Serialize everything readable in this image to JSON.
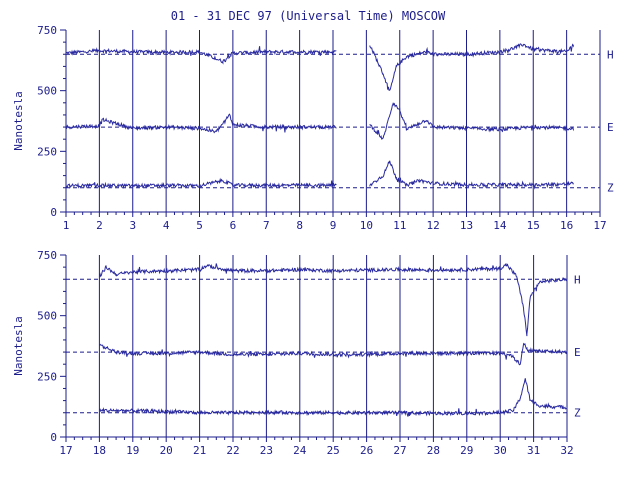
{
  "title": "01 - 31 DEC 97 (Universal Time) MOSCOW",
  "colors": {
    "ink": "#1c1c8c",
    "trace": "#2a2aa0",
    "background": "#ffffff"
  },
  "chart_data": [
    {
      "type": "line",
      "ylabel": "Nanotesla",
      "xlim": [
        1,
        17
      ],
      "ylim": [
        0,
        750
      ],
      "x_ticks": [
        "1",
        "2",
        "3",
        "4",
        "5",
        "6",
        "7",
        "8",
        "9",
        "10",
        "11",
        "12",
        "13",
        "14",
        "15",
        "16",
        "17"
      ],
      "y_ticks": [
        "0",
        "250",
        "500",
        "750"
      ],
      "grid": "vertical lines at each day",
      "data_gap_days": [
        9.1,
        10.1
      ],
      "data_end_day": 16.2,
      "series": [
        {
          "name": "H",
          "baseline": 650,
          "values": [
            [
              1,
              655
            ],
            [
              2,
              665
            ],
            [
              3,
              660
            ],
            [
              4,
              658
            ],
            [
              5,
              660
            ],
            [
              5.7,
              620
            ],
            [
              6,
              655
            ],
            [
              7,
              660
            ],
            [
              8,
              660
            ],
            [
              9,
              660
            ],
            [
              10.1,
              690
            ],
            [
              10.5,
              570
            ],
            [
              10.7,
              495
            ],
            [
              10.9,
              600
            ],
            [
              11.2,
              640
            ],
            [
              11.8,
              660
            ],
            [
              12,
              650
            ],
            [
              13,
              650
            ],
            [
              14,
              660
            ],
            [
              14.3,
              670
            ],
            [
              14.7,
              690
            ],
            [
              15,
              670
            ],
            [
              16,
              660
            ],
            [
              16.2,
              690
            ]
          ]
        },
        {
          "name": "E",
          "baseline": 350,
          "values": [
            [
              1,
              350
            ],
            [
              2,
              355
            ],
            [
              2.1,
              380
            ],
            [
              3,
              345
            ],
            [
              4,
              350
            ],
            [
              5,
              345
            ],
            [
              5.5,
              330
            ],
            [
              5.9,
              400
            ],
            [
              6,
              360
            ],
            [
              7,
              350
            ],
            [
              8,
              350
            ],
            [
              9,
              350
            ],
            [
              10.1,
              360
            ],
            [
              10.5,
              300
            ],
            [
              10.7,
              400
            ],
            [
              10.8,
              450
            ],
            [
              11,
              420
            ],
            [
              11.2,
              340
            ],
            [
              11.8,
              380
            ],
            [
              12,
              350
            ],
            [
              13,
              345
            ],
            [
              14,
              340
            ],
            [
              15,
              350
            ],
            [
              16,
              345
            ],
            [
              16.2,
              345
            ]
          ]
        },
        {
          "name": "Z",
          "baseline": 100,
          "values": [
            [
              1,
              108
            ],
            [
              2,
              110
            ],
            [
              3,
              108
            ],
            [
              4,
              110
            ],
            [
              5,
              108
            ],
            [
              5.7,
              130
            ],
            [
              6,
              110
            ],
            [
              7,
              110
            ],
            [
              8,
              110
            ],
            [
              9,
              110
            ],
            [
              10.1,
              110
            ],
            [
              10.5,
              150
            ],
            [
              10.7,
              210
            ],
            [
              10.9,
              140
            ],
            [
              11.2,
              110
            ],
            [
              11.6,
              130
            ],
            [
              12,
              118
            ],
            [
              13,
              112
            ],
            [
              14,
              112
            ],
            [
              15,
              112
            ],
            [
              16,
              115
            ],
            [
              16.2,
              118
            ]
          ]
        }
      ]
    },
    {
      "type": "line",
      "ylabel": "Nanotesla",
      "xlim": [
        17,
        32
      ],
      "ylim": [
        0,
        750
      ],
      "x_ticks": [
        "17",
        "18",
        "19",
        "20",
        "21",
        "22",
        "23",
        "24",
        "25",
        "26",
        "27",
        "28",
        "29",
        "30",
        "31",
        "32"
      ],
      "y_ticks": [
        "0",
        "250",
        "500",
        "750"
      ],
      "grid": "vertical lines at each day",
      "data_start_day": 18,
      "data_end_day": 32,
      "series": [
        {
          "name": "H",
          "baseline": 650,
          "values": [
            [
              18,
              660
            ],
            [
              18.2,
              700
            ],
            [
              18.5,
              670
            ],
            [
              19,
              680
            ],
            [
              20,
              685
            ],
            [
              21,
              690
            ],
            [
              21.2,
              705
            ],
            [
              22,
              685
            ],
            [
              23,
              685
            ],
            [
              24,
              690
            ],
            [
              25,
              685
            ],
            [
              26,
              688
            ],
            [
              27,
              690
            ],
            [
              28,
              688
            ],
            [
              29,
              690
            ],
            [
              30,
              695
            ],
            [
              30.2,
              710
            ],
            [
              30.5,
              660
            ],
            [
              30.7,
              530
            ],
            [
              30.8,
              420
            ],
            [
              30.9,
              580
            ],
            [
              31.2,
              640
            ],
            [
              32,
              650
            ]
          ]
        },
        {
          "name": "E",
          "baseline": 350,
          "values": [
            [
              18,
              380
            ],
            [
              18.5,
              350
            ],
            [
              19,
              345
            ],
            [
              20,
              345
            ],
            [
              21,
              350
            ],
            [
              22,
              340
            ],
            [
              23,
              340
            ],
            [
              24,
              345
            ],
            [
              25,
              340
            ],
            [
              26,
              340
            ],
            [
              27,
              345
            ],
            [
              28,
              345
            ],
            [
              29,
              345
            ],
            [
              30,
              345
            ],
            [
              30.3,
              340
            ],
            [
              30.6,
              300
            ],
            [
              30.7,
              390
            ],
            [
              30.8,
              360
            ],
            [
              31,
              355
            ],
            [
              32,
              350
            ]
          ]
        },
        {
          "name": "Z",
          "baseline": 100,
          "values": [
            [
              18,
              110
            ],
            [
              19,
              108
            ],
            [
              20,
              105
            ],
            [
              21,
              100
            ],
            [
              22,
              100
            ],
            [
              23,
              102
            ],
            [
              24,
              100
            ],
            [
              25,
              100
            ],
            [
              26,
              100
            ],
            [
              27,
              100
            ],
            [
              28,
              98
            ],
            [
              29,
              98
            ],
            [
              30,
              100
            ],
            [
              30.4,
              110
            ],
            [
              30.6,
              160
            ],
            [
              30.75,
              240
            ],
            [
              30.9,
              150
            ],
            [
              31.2,
              128
            ],
            [
              32,
              122
            ]
          ]
        }
      ]
    }
  ]
}
